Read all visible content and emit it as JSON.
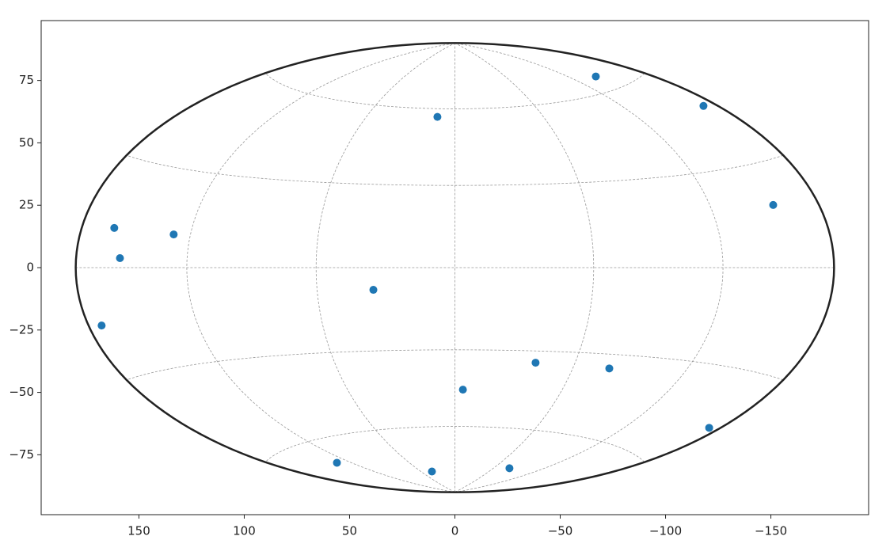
{
  "chart_data": {
    "type": "scatter",
    "projection": "hammer",
    "grid": true,
    "color": "#1f77b4",
    "xlim": [
      196.4,
      -196.4
    ],
    "ylim": [
      -99,
      99
    ],
    "xticks": [
      150,
      100,
      50,
      0,
      {
        "value": -50,
        "label": "−50"
      },
      {
        "value": -100,
        "label": "−100"
      },
      {
        "value": -150,
        "label": "−150"
      }
    ],
    "yticks": [
      {
        "value": -75,
        "label": "−75"
      },
      {
        "value": -50,
        "label": "−50"
      },
      {
        "value": -25,
        "label": "−25"
      },
      0,
      25,
      50,
      75
    ],
    "x": [
      161.7,
      159.0,
      133.5,
      167.7,
      38.7,
      8.3,
      -66.9,
      -118.0,
      -151.1,
      -3.8,
      -38.3,
      -73.3,
      -120.7,
      56.0,
      10.9,
      -25.9
    ],
    "values": [
      15.9,
      3.8,
      13.3,
      -23.2,
      -8.9,
      60.4,
      76.6,
      64.8,
      25.1,
      -48.9,
      -38.1,
      -40.4,
      -64.2,
      -78.2,
      -81.7,
      -80.4
    ]
  }
}
